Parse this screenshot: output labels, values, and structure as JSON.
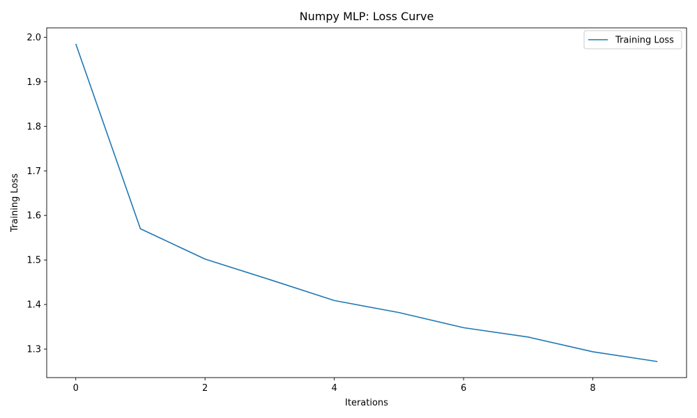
{
  "chart_data": {
    "type": "line",
    "title": "Numpy MLP: Loss Curve",
    "xlabel": "Iterations",
    "ylabel": "Training Loss",
    "xlim": [
      -0.45,
      9.45
    ],
    "ylim": [
      1.236,
      2.021
    ],
    "xticks": [
      0,
      2,
      4,
      6,
      8
    ],
    "yticks": [
      1.3,
      1.4,
      1.5,
      1.6,
      1.7,
      1.8,
      1.9,
      2.0
    ],
    "xtick_labels": [
      "0",
      "2",
      "4",
      "6",
      "8"
    ],
    "ytick_labels": [
      "1.3",
      "1.4",
      "1.5",
      "1.6",
      "1.7",
      "1.8",
      "1.9",
      "2.0"
    ],
    "grid": false,
    "legend_position": "upper-right",
    "series": [
      {
        "name": "Training Loss",
        "color": "#1f77b4",
        "x": [
          0,
          1,
          2,
          3,
          4,
          5,
          6,
          7,
          8,
          9
        ],
        "y": [
          1.985,
          1.57,
          1.502,
          1.456,
          1.409,
          1.382,
          1.348,
          1.327,
          1.294,
          1.272
        ]
      }
    ]
  }
}
